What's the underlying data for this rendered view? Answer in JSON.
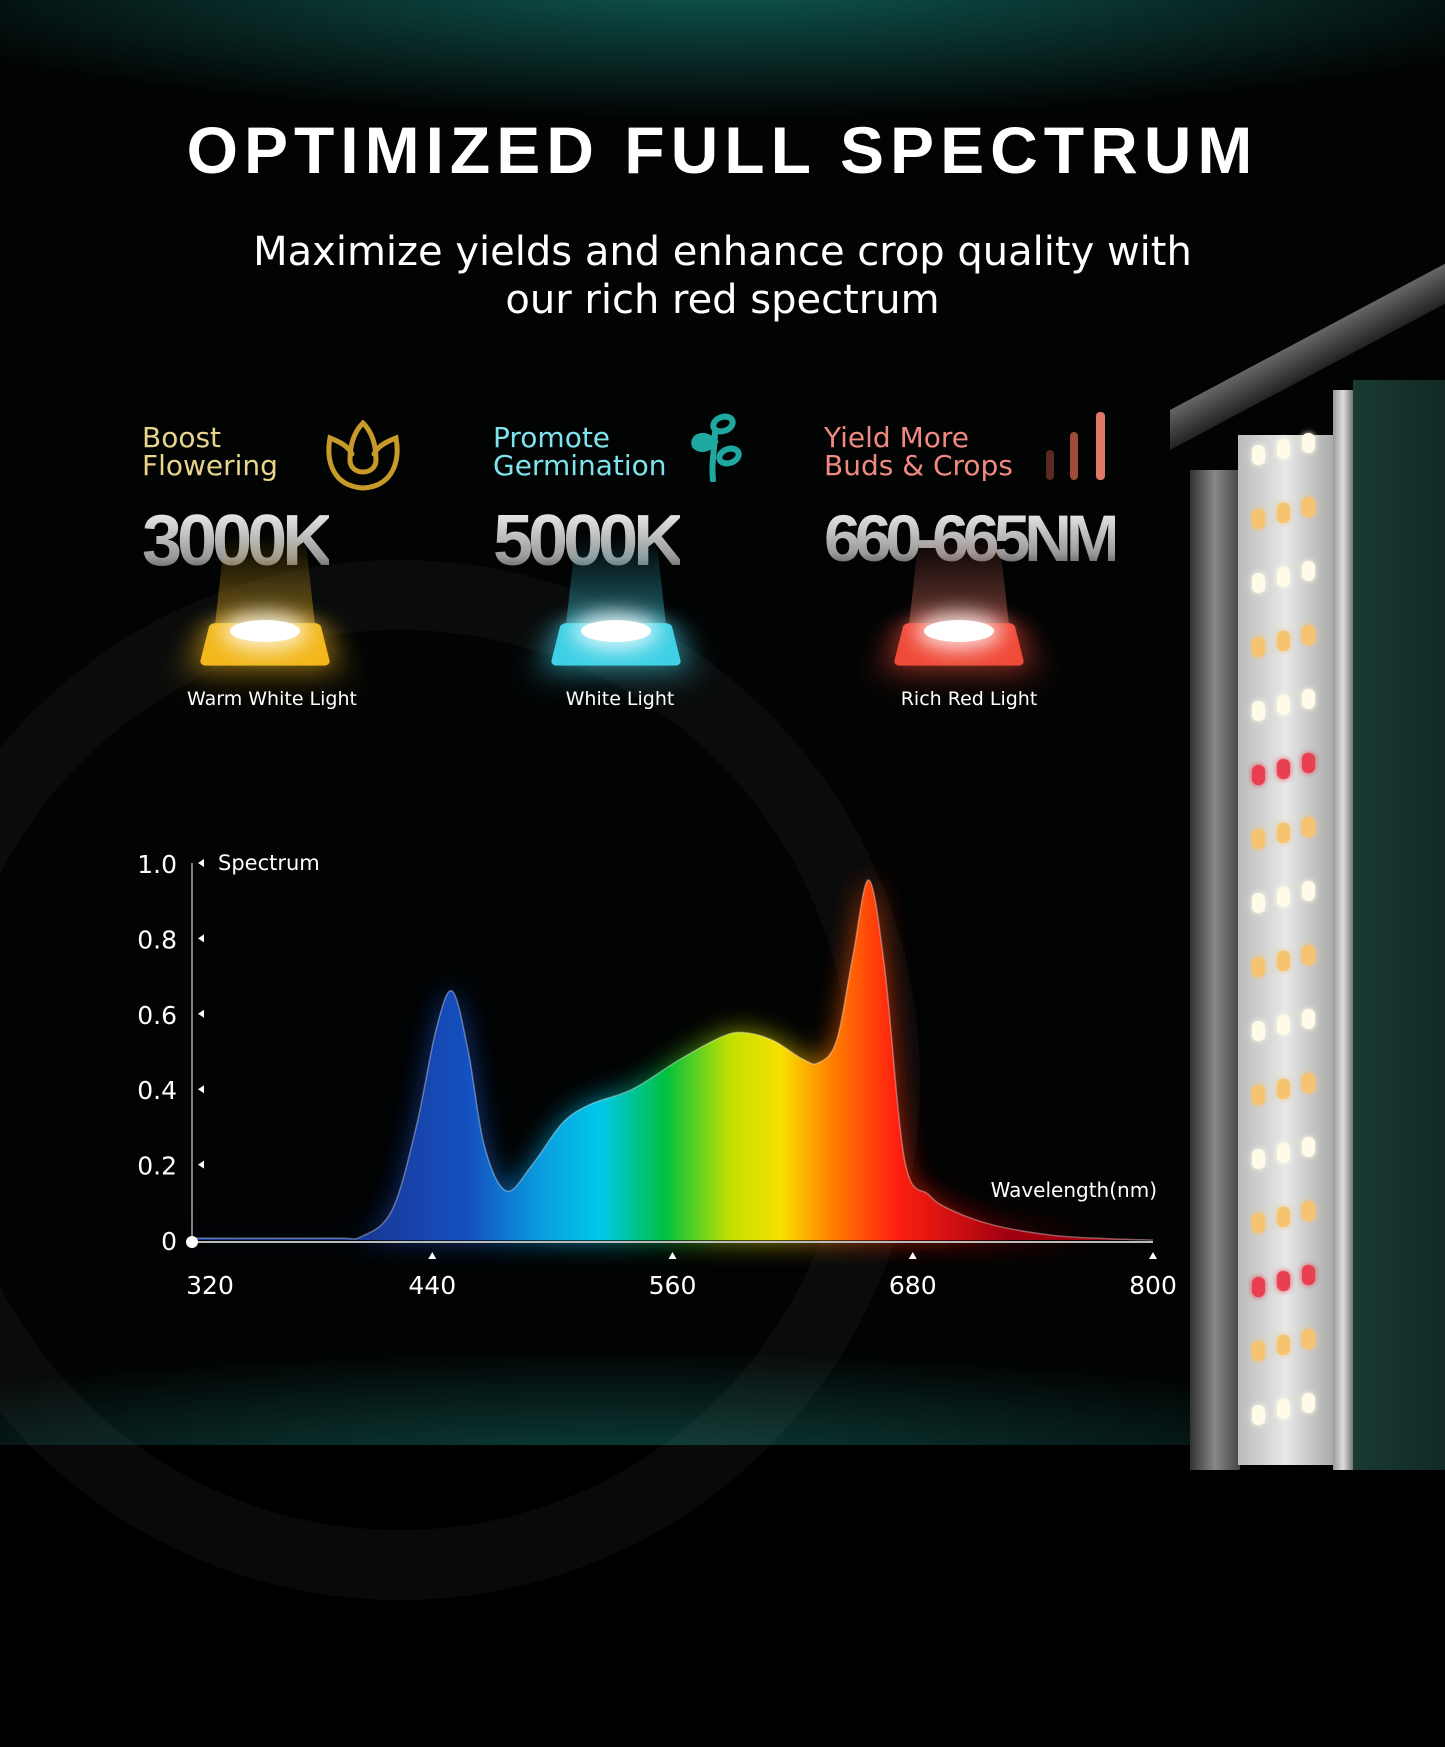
{
  "header": {
    "title": "OPTIMIZED FULL SPECTRUM",
    "subtitle_line1": "Maximize yields and enhance crop quality with",
    "subtitle_line2": "our rich red spectrum"
  },
  "features": [
    {
      "label_line1": "Boost",
      "label_line2": "Flowering",
      "value": "3000K",
      "caption": "Warm White Light",
      "color": "#e8d48a",
      "chip_color": "#f2b81c",
      "icon": "tulip-flower-icon"
    },
    {
      "label_line1": "Promote",
      "label_line2": "Germination",
      "value": "5000K",
      "caption": "White Light",
      "color": "#7fe3ee",
      "chip_color": "#3fd0e6",
      "icon": "sprout-icon"
    },
    {
      "label_line1": "Yield More",
      "label_line2": "Buds & Crops",
      "value": "660-665NM",
      "caption": "Rich Red Light",
      "color": "#f08a80",
      "chip_color": "#f04a38",
      "icon": "growth-bars-icon"
    }
  ],
  "chart_data": {
    "type": "area",
    "ylabel": "Spectrum",
    "xlabel": "Wavelength(nm)",
    "xlim": [
      320,
      800
    ],
    "ylim": [
      0,
      1.0
    ],
    "xticks": [
      320,
      440,
      560,
      680,
      800
    ],
    "yticks": [
      "0",
      "0.2",
      "0.4",
      "0.6",
      "0.8",
      "1.0"
    ],
    "grid": false,
    "x": [
      320,
      390,
      405,
      420,
      432,
      442,
      450,
      458,
      466,
      477,
      490,
      505,
      519,
      540,
      564,
      585,
      596,
      610,
      625,
      633,
      642,
      650,
      658,
      666,
      676,
      688,
      699,
      720,
      749,
      775,
      800
    ],
    "y": [
      0.005,
      0.005,
      0.01,
      0.08,
      0.3,
      0.56,
      0.66,
      0.5,
      0.25,
      0.13,
      0.2,
      0.31,
      0.36,
      0.4,
      0.48,
      0.54,
      0.55,
      0.53,
      0.48,
      0.47,
      0.53,
      0.75,
      0.955,
      0.72,
      0.21,
      0.12,
      0.08,
      0.04,
      0.013,
      0.004,
      0.0
    ]
  },
  "colors": {
    "background": "#020303",
    "accent_teal": "#14786e"
  }
}
